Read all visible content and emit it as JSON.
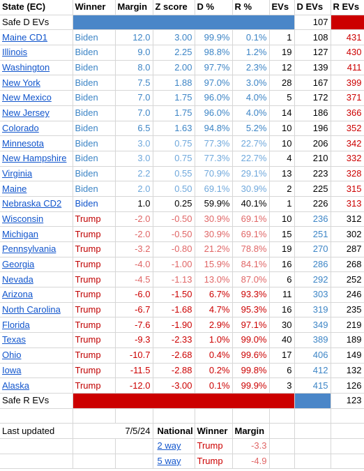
{
  "headers": [
    "State (EC)",
    "Winner",
    "Margin",
    "Z score",
    "D %",
    "R %",
    "EVs",
    "D EVs",
    "R EVs"
  ],
  "safe_d": {
    "label": "Safe D EVs",
    "d_evs": "107"
  },
  "rows": [
    {
      "state": "Maine CD1",
      "winner": "Biden",
      "margin": "12.0",
      "z": "3.00",
      "d": "99.9%",
      "r": "0.1%",
      "evs": "1",
      "devs": "108",
      "revs": "431",
      "style": "lb-d"
    },
    {
      "state": "Illinois",
      "winner": "Biden",
      "margin": "9.0",
      "z": "2.25",
      "d": "98.8%",
      "r": "1.2%",
      "evs": "19",
      "devs": "127",
      "revs": "430",
      "style": "lb-d"
    },
    {
      "state": "Washington",
      "winner": "Biden",
      "margin": "8.0",
      "z": "2.00",
      "d": "97.7%",
      "r": "2.3%",
      "evs": "12",
      "devs": "139",
      "revs": "411",
      "style": "lb-d"
    },
    {
      "state": "New York",
      "winner": "Biden",
      "margin": "7.5",
      "z": "1.88",
      "d": "97.0%",
      "r": "3.0%",
      "evs": "28",
      "devs": "167",
      "revs": "399",
      "style": "lb-d"
    },
    {
      "state": "New Mexico",
      "winner": "Biden",
      "margin": "7.0",
      "z": "1.75",
      "d": "96.0%",
      "r": "4.0%",
      "evs": "5",
      "devs": "172",
      "revs": "371",
      "style": "lb-d"
    },
    {
      "state": "New Jersey",
      "winner": "Biden",
      "margin": "7.0",
      "z": "1.75",
      "d": "96.0%",
      "r": "4.0%",
      "evs": "14",
      "devs": "186",
      "revs": "366",
      "style": "lb-d"
    },
    {
      "state": "Colorado",
      "winner": "Biden",
      "margin": "6.5",
      "z": "1.63",
      "d": "94.8%",
      "r": "5.2%",
      "evs": "10",
      "devs": "196",
      "revs": "352",
      "style": "lb-d"
    },
    {
      "state": "Minnesota",
      "winner": "Biden",
      "margin": "3.0",
      "z": "0.75",
      "d": "77.3%",
      "r": "22.7%",
      "evs": "10",
      "devs": "206",
      "revs": "342",
      "style": "lb-d-m"
    },
    {
      "state": "New Hampshire",
      "winner": "Biden",
      "margin": "3.0",
      "z": "0.75",
      "d": "77.3%",
      "r": "22.7%",
      "evs": "4",
      "devs": "210",
      "revs": "332",
      "style": "lb-d-m"
    },
    {
      "state": "Virginia",
      "winner": "Biden",
      "margin": "2.2",
      "z": "0.55",
      "d": "70.9%",
      "r": "29.1%",
      "evs": "13",
      "devs": "223",
      "revs": "328",
      "style": "lb-d-m"
    },
    {
      "state": "Maine",
      "winner": "Biden",
      "margin": "2.0",
      "z": "0.50",
      "d": "69.1%",
      "r": "30.9%",
      "evs": "2",
      "devs": "225",
      "revs": "315",
      "style": "lb-d-m"
    },
    {
      "state": "Nebraska CD2",
      "winner": "Biden",
      "margin": "1.0",
      "z": "0.25",
      "d": "59.9%",
      "r": "40.1%",
      "evs": "1",
      "devs": "226",
      "revs": "313",
      "style": "db-d"
    },
    {
      "state": "Wisconsin",
      "winner": "Trump",
      "margin": "-2.0",
      "z": "-0.50",
      "d": "30.9%",
      "r": "69.1%",
      "evs": "10",
      "devs": "236",
      "revs": "312",
      "style": "tr-m"
    },
    {
      "state": "Michigan",
      "winner": "Trump",
      "margin": "-2.0",
      "z": "-0.50",
      "d": "30.9%",
      "r": "69.1%",
      "evs": "15",
      "devs": "251",
      "revs": "302",
      "style": "tr-m"
    },
    {
      "state": "Pennsylvania",
      "winner": "Trump",
      "margin": "-3.2",
      "z": "-0.80",
      "d": "21.2%",
      "r": "78.8%",
      "evs": "19",
      "devs": "270",
      "revs": "287",
      "style": "tr-m"
    },
    {
      "state": "Georgia",
      "winner": "Trump",
      "margin": "-4.0",
      "z": "-1.00",
      "d": "15.9%",
      "r": "84.1%",
      "evs": "16",
      "devs": "286",
      "revs": "268",
      "style": "tr-m"
    },
    {
      "state": "Nevada",
      "winner": "Trump",
      "margin": "-4.5",
      "z": "-1.13",
      "d": "13.0%",
      "r": "87.0%",
      "evs": "6",
      "devs": "292",
      "revs": "252",
      "style": "tr-m"
    },
    {
      "state": "Arizona",
      "winner": "Trump",
      "margin": "-6.0",
      "z": "-1.50",
      "d": "6.7%",
      "r": "93.3%",
      "evs": "11",
      "devs": "303",
      "revs": "246",
      "style": "tr-s"
    },
    {
      "state": "North Carolina",
      "winner": "Trump",
      "margin": "-6.7",
      "z": "-1.68",
      "d": "4.7%",
      "r": "95.3%",
      "evs": "16",
      "devs": "319",
      "revs": "235",
      "style": "tr-s"
    },
    {
      "state": "Florida",
      "winner": "Trump",
      "margin": "-7.6",
      "z": "-1.90",
      "d": "2.9%",
      "r": "97.1%",
      "evs": "30",
      "devs": "349",
      "revs": "219",
      "style": "tr-s"
    },
    {
      "state": "Texas",
      "winner": "Trump",
      "margin": "-9.3",
      "z": "-2.33",
      "d": "1.0%",
      "r": "99.0%",
      "evs": "40",
      "devs": "389",
      "revs": "189",
      "style": "tr-s"
    },
    {
      "state": "Ohio",
      "winner": "Trump",
      "margin": "-10.7",
      "z": "-2.68",
      "d": "0.4%",
      "r": "99.6%",
      "evs": "17",
      "devs": "406",
      "revs": "149",
      "style": "tr-s"
    },
    {
      "state": "Iowa",
      "winner": "Trump",
      "margin": "-11.5",
      "z": "-2.88",
      "d": "0.2%",
      "r": "99.8%",
      "evs": "6",
      "devs": "412",
      "revs": "132",
      "style": "tr-s"
    },
    {
      "state": "Alaska",
      "winner": "Trump",
      "margin": "-12.0",
      "z": "-3.00",
      "d": "0.1%",
      "r": "99.9%",
      "evs": "3",
      "devs": "415",
      "revs": "126",
      "style": "tr-s"
    }
  ],
  "safe_r": {
    "label": "Safe R EVs",
    "r_evs": "123"
  },
  "footer": {
    "last_updated_label": "Last updated",
    "last_updated_value": "7/5/24",
    "national_headers": [
      "National",
      "Winner",
      "Margin"
    ],
    "national_rows": [
      {
        "label": "2 way",
        "winner": "Trump",
        "margin": "-3.3"
      },
      {
        "label": "5 way",
        "winner": "Trump",
        "margin": "-4.9"
      }
    ]
  },
  "colors": {
    "dem_blue": "#4a86c8",
    "gop_red": "#cc0000",
    "link": "#1155cc",
    "light_blue": "#6fa8dc",
    "light_red": "#e06666"
  }
}
